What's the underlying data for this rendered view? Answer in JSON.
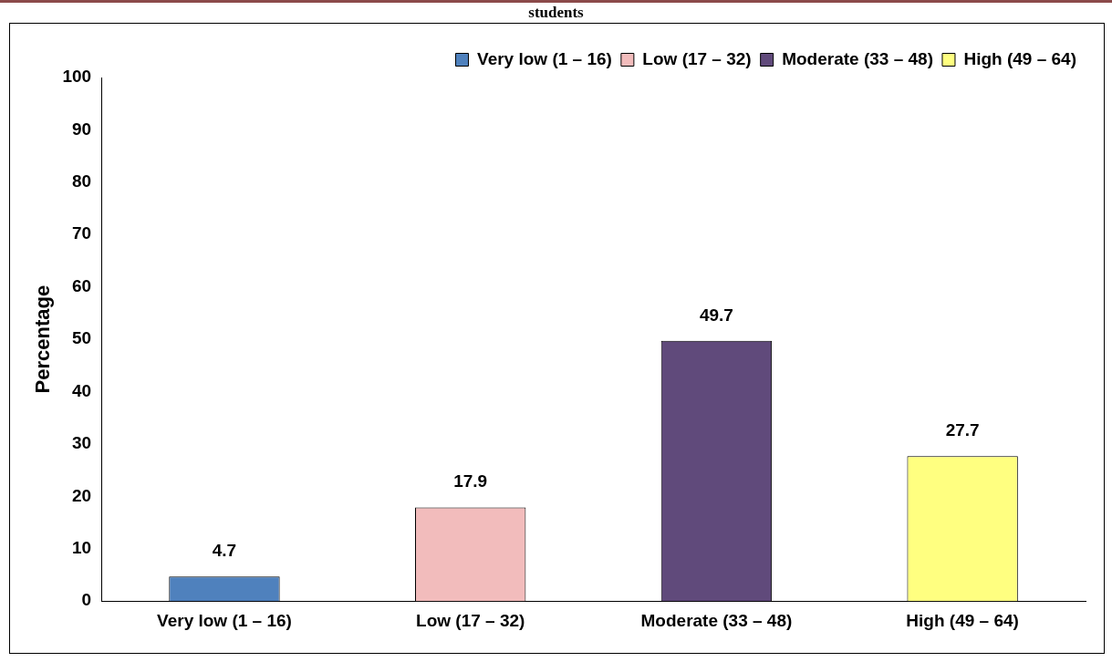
{
  "chart_data": {
    "type": "bar",
    "title": "students",
    "ylabel": "Percentage",
    "categories": [
      "Very low (1 – 16)",
      "Low (17 – 32)",
      "Moderate (33 – 48)",
      "High (49 – 64)"
    ],
    "series": [
      {
        "name": "Very low (1 – 16)",
        "color": "#4f81bd",
        "values": [
          4.7,
          null,
          null,
          null
        ]
      },
      {
        "name": "Low (17 – 32)",
        "color": "#f2bcbc",
        "values": [
          null,
          17.9,
          null,
          null
        ]
      },
      {
        "name": "Moderate (33 – 48)",
        "color": "#604a7b",
        "values": [
          null,
          null,
          49.7,
          null
        ]
      },
      {
        "name": "High (49 – 64)",
        "color": "#ffff80",
        "values": [
          null,
          null,
          null,
          27.7
        ]
      }
    ],
    "ylim": [
      0,
      100
    ],
    "yticks": [
      0,
      10,
      20,
      30,
      40,
      50,
      60,
      70,
      80,
      90,
      100
    ],
    "grid": false,
    "legend": "top right",
    "data_labels": true
  }
}
